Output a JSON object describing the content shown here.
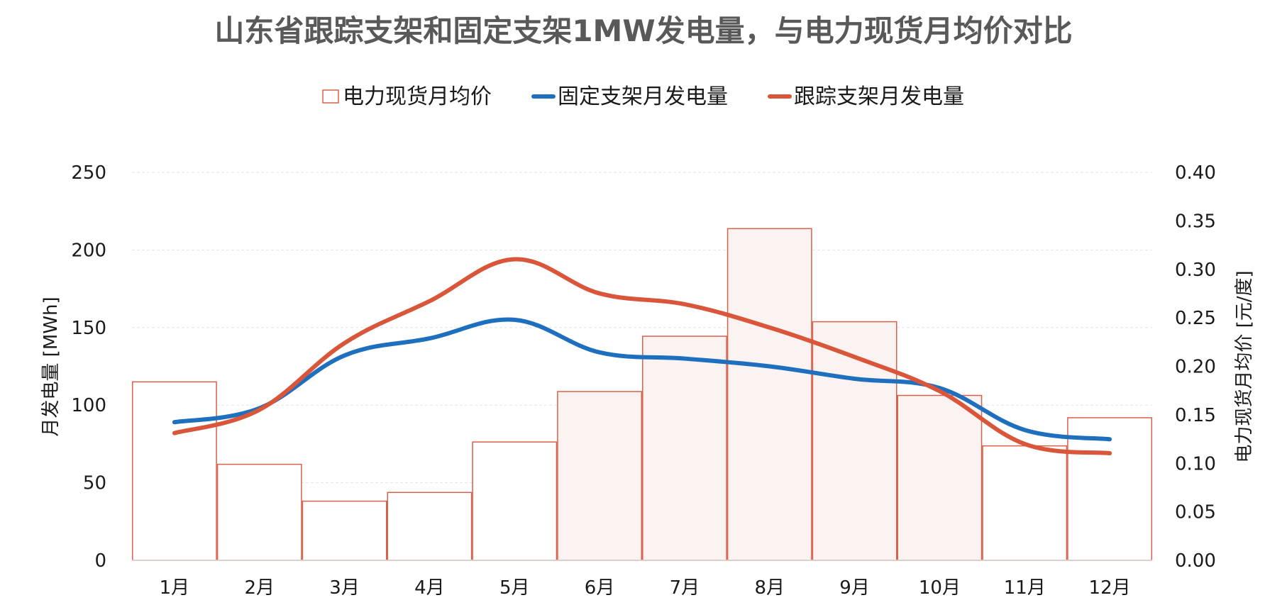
{
  "chart_data": {
    "type": "bar+line",
    "title": "山东省跟踪支架和固定支架1MW发电量，与电力现货月均价对比",
    "categories": [
      "1月",
      "2月",
      "3月",
      "4月",
      "5月",
      "6月",
      "7月",
      "8月",
      "9月",
      "10月",
      "11月",
      "12月"
    ],
    "left_axis": {
      "label": "月发电量 [MWh]",
      "min": 0,
      "max": 250,
      "ticks": [
        "0",
        "50",
        "100",
        "150",
        "200",
        "250"
      ],
      "tick_values": [
        0,
        50,
        100,
        150,
        200,
        250
      ]
    },
    "right_axis": {
      "label": "电力现货月均价 [元/度]",
      "min": 0,
      "max": 0.4,
      "ticks": [
        "0.00",
        "0.05",
        "0.10",
        "0.15",
        "0.20",
        "0.25",
        "0.30",
        "0.35",
        "0.40"
      ],
      "tick_values": [
        0,
        0.05,
        0.1,
        0.15,
        0.2,
        0.25,
        0.3,
        0.35,
        0.4
      ]
    },
    "series": [
      {
        "name": "电力现货月均价",
        "kind": "bar",
        "axis": "right",
        "color": "#d9604a",
        "values": [
          0.184,
          0.099,
          0.061,
          0.07,
          0.122,
          0.174,
          0.231,
          0.342,
          0.246,
          0.17,
          0.118,
          0.147
        ]
      },
      {
        "name": "固定支架月发电量",
        "kind": "line",
        "axis": "left",
        "color": "#1f6fbf",
        "values": [
          89,
          98,
          132,
          143,
          155,
          134,
          130,
          125,
          117,
          111,
          84,
          78
        ]
      },
      {
        "name": "跟踪支架月发电量",
        "kind": "line",
        "axis": "left",
        "color": "#d9563a",
        "values": [
          82,
          97,
          140,
          167,
          194,
          172,
          165,
          150,
          131,
          109,
          75,
          69
        ]
      }
    ],
    "shaded_bar_months": [
      "6月",
      "7月",
      "8月",
      "9月",
      "10月"
    ],
    "legend_position": "top-center",
    "grid": true
  }
}
